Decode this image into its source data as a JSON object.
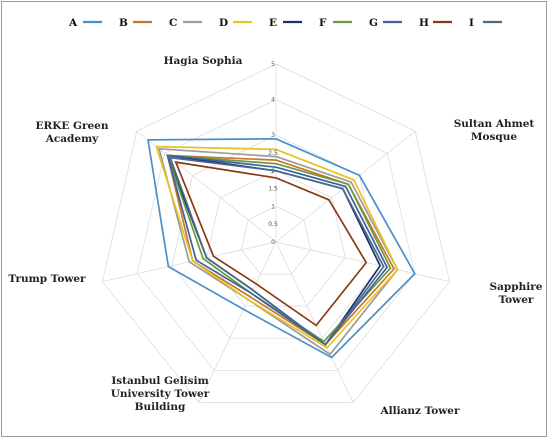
{
  "chart_data": {
    "type": "radar",
    "categories": [
      "Hagia Sophia",
      "Sultan Ahmet Mosque",
      "Sapphire Tower",
      "Allianz Tower",
      "Istanbul Gelisim University Tower Building",
      "Trump Tower",
      "ERKE Green Academy"
    ],
    "category_lines": [
      [
        "Hagia Sophia"
      ],
      [
        "Sultan Ahmet",
        "Mosque"
      ],
      [
        "Sapphire",
        "Tower"
      ],
      [
        "Allianz Tower"
      ],
      [
        "Istanbul Gelisim",
        "University Tower",
        "Building"
      ],
      [
        "Trump Tower"
      ],
      [
        "ERKE Green",
        "Academy"
      ]
    ],
    "tick_labels": [
      "0",
      "0.5",
      "1",
      "1.5",
      "2",
      "2.5",
      "3",
      "4",
      "5"
    ],
    "rlim": [
      0,
      5
    ],
    "grid": true,
    "legend_position": "top",
    "series": [
      {
        "name": "A",
        "color": "#4a90c8",
        "values": [
          2.9,
          3.0,
          4.0,
          3.6,
          2.1,
          3.1,
          4.6
        ]
      },
      {
        "name": "B",
        "color": "#c8782e",
        "values": [
          2.3,
          2.6,
          3.4,
          3.2,
          1.7,
          2.4,
          3.9
        ]
      },
      {
        "name": "C",
        "color": "#9c9c9c",
        "values": [
          2.4,
          2.7,
          3.5,
          3.5,
          1.8,
          2.5,
          4.2
        ]
      },
      {
        "name": "D",
        "color": "#e8c21e",
        "values": [
          2.6,
          2.8,
          3.5,
          3.3,
          1.8,
          2.4,
          4.3
        ]
      },
      {
        "name": "E",
        "color": "#1e2f6e",
        "values": [
          2.0,
          2.4,
          3.0,
          3.2,
          1.5,
          2.0,
          3.9
        ]
      },
      {
        "name": "F",
        "color": "#6a9a3a",
        "values": [
          2.2,
          2.6,
          3.3,
          3.1,
          1.6,
          2.1,
          3.9
        ]
      },
      {
        "name": "G",
        "color": "#3a63a0",
        "values": [
          2.1,
          2.5,
          3.2,
          3.2,
          1.6,
          2.3,
          3.9
        ]
      },
      {
        "name": "H",
        "color": "#8a3a12",
        "values": [
          1.8,
          1.9,
          2.6,
          2.6,
          1.3,
          1.8,
          3.6
        ]
      },
      {
        "name": "I",
        "color": "#4a6a88",
        "values": [
          2.0,
          2.4,
          3.1,
          3.2,
          1.5,
          2.0,
          3.8
        ]
      }
    ]
  }
}
